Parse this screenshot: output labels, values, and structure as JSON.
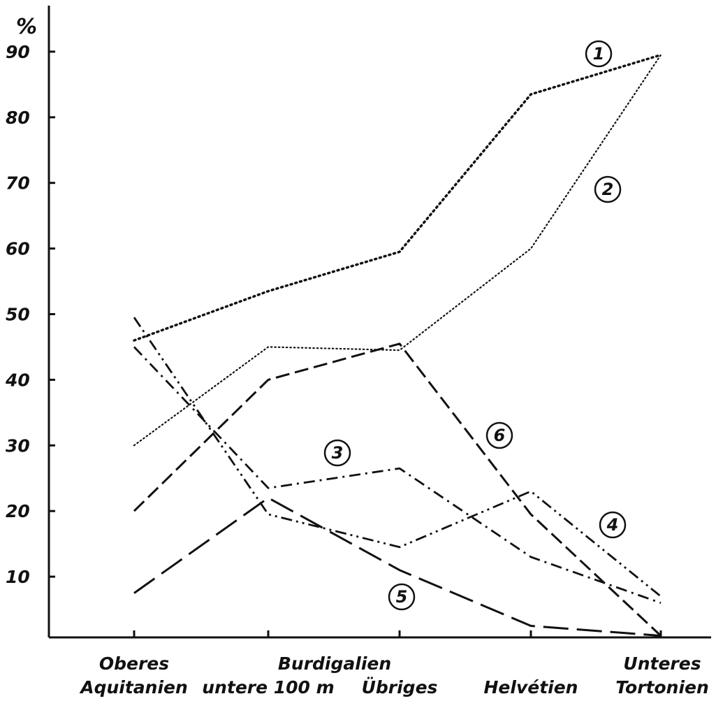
{
  "chart_data": {
    "type": "line",
    "y_unit_label": "%",
    "ylim": [
      0,
      95
    ],
    "y_ticks": [
      10,
      20,
      30,
      40,
      50,
      60,
      70,
      80,
      90
    ],
    "categories": [
      "Oberes Aquitanien",
      "Burdigalien untere 100 m",
      "Burdigalien Übriges",
      "Helvétien",
      "Unteres Tortonien"
    ],
    "x_labels": [
      {
        "lines": [
          "Oberes",
          "Aquitanien"
        ]
      },
      {
        "lines": [
          "untere 100 m"
        ]
      },
      {
        "lines": [
          "Übriges"
        ]
      },
      {
        "lines": [
          "Helvétien"
        ]
      },
      {
        "lines": [
          "Unteres",
          "Tortonien"
        ]
      }
    ],
    "group_label": "Burdigalien",
    "series": [
      {
        "marker": "1",
        "style": "dotted",
        "values": [
          46,
          53.5,
          59.5,
          83.5,
          89.5
        ]
      },
      {
        "marker": "2",
        "style": "fine-dotted",
        "values": [
          30,
          45,
          44.5,
          60,
          89.5
        ]
      },
      {
        "marker": "3",
        "style": "dash-dot",
        "values": [
          45,
          23.5,
          26.5,
          13,
          6
        ]
      },
      {
        "marker": "4",
        "style": "dash-dot-dot",
        "values": [
          49.5,
          19.5,
          14.5,
          23,
          7
        ]
      },
      {
        "marker": "5",
        "style": "long-dash",
        "values": [
          7.5,
          22,
          11,
          2.5,
          1
        ]
      },
      {
        "marker": "6",
        "style": "dash",
        "values": [
          20,
          40,
          45.5,
          19.5,
          1
        ]
      }
    ],
    "grid": false,
    "legend": "none"
  }
}
